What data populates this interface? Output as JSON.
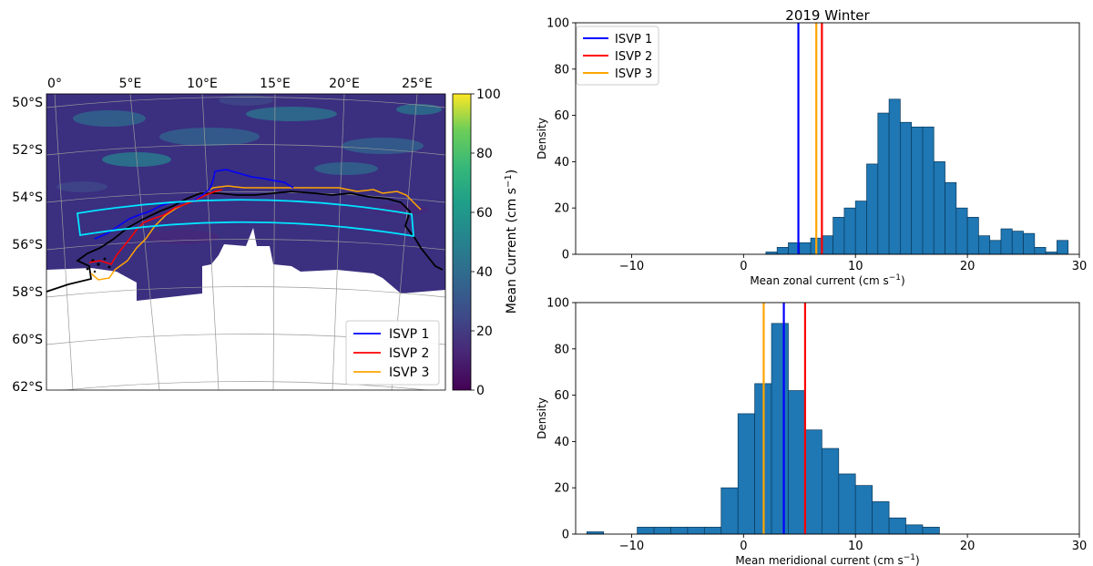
{
  "map": {
    "lon_ticks": [
      "0°",
      "5°E",
      "10°E",
      "15°E",
      "20°E",
      "25°E"
    ],
    "lat_ticks": [
      "50°S",
      "52°S",
      "54°S",
      "56°S",
      "58°S",
      "60°S",
      "62°S"
    ],
    "colorbar": {
      "label": "Mean Current (cm s",
      "label_sup": "−1",
      "label_end": ")",
      "ticks": [
        "0",
        "20",
        "40",
        "60",
        "80",
        "100"
      ],
      "range": [
        0,
        100
      ]
    },
    "legend": [
      "ISVP 1",
      "ISVP 2",
      "ISVP 3"
    ],
    "colors": {
      "isvp1": "#0000ff",
      "isvp2": "#ff0000",
      "isvp3": "#ffa500",
      "box": "#00e5ff",
      "coast": "#000000"
    }
  },
  "chart_data": [
    {
      "type": "bar",
      "title": "2019 Winter",
      "xlabel": "Mean zonal current (cm s",
      "xlabel_sup": "−1",
      "xlabel_end": ")",
      "ylabel": "Density",
      "xlim": [
        -15,
        30
      ],
      "ylim": [
        0,
        100
      ],
      "xticks": [
        -10,
        0,
        10,
        20,
        30
      ],
      "yticks": [
        0,
        20,
        40,
        60,
        80,
        100
      ],
      "bin_width": 1,
      "bins": [
        [
          2,
          1
        ],
        [
          3,
          3
        ],
        [
          4,
          5
        ],
        [
          5,
          5
        ],
        [
          6,
          7
        ],
        [
          7,
          8
        ],
        [
          8,
          16
        ],
        [
          9,
          20
        ],
        [
          10,
          23
        ],
        [
          11,
          39
        ],
        [
          12,
          61
        ],
        [
          13,
          67
        ],
        [
          14,
          57
        ],
        [
          15,
          55
        ],
        [
          16,
          55
        ],
        [
          17,
          40
        ],
        [
          18,
          31
        ],
        [
          19,
          20
        ],
        [
          20,
          16
        ],
        [
          21,
          8
        ],
        [
          22,
          6
        ],
        [
          23,
          11
        ],
        [
          24,
          10
        ],
        [
          25,
          9
        ],
        [
          26,
          3
        ],
        [
          27,
          1
        ],
        [
          28,
          6
        ]
      ],
      "vlines": [
        {
          "name": "ISVP 1",
          "x": 4.9,
          "color": "#0000ff"
        },
        {
          "name": "ISVP 2",
          "x": 7.0,
          "color": "#ff0000"
        },
        {
          "name": "ISVP 3",
          "x": 6.5,
          "color": "#ffa500"
        }
      ],
      "legend_placement": "top-left"
    },
    {
      "type": "bar",
      "title": "",
      "xlabel": "Mean meridional current (cm s",
      "xlabel_sup": "−1",
      "xlabel_end": ")",
      "ylabel": "Density",
      "xlim": [
        -15,
        30
      ],
      "ylim": [
        0,
        100
      ],
      "xticks": [
        -10,
        0,
        10,
        20,
        30
      ],
      "yticks": [
        0,
        20,
        40,
        60,
        80,
        100
      ],
      "bin_width": 1.5,
      "bins": [
        [
          -14,
          1
        ],
        [
          -11,
          0
        ],
        [
          -9.5,
          3
        ],
        [
          -8,
          3
        ],
        [
          -6.5,
          3
        ],
        [
          -5,
          3
        ],
        [
          -3.5,
          3
        ],
        [
          -2,
          20
        ],
        [
          -0.5,
          52
        ],
        [
          1,
          65
        ],
        [
          2.5,
          91
        ],
        [
          4,
          62
        ],
        [
          5.5,
          45
        ],
        [
          7,
          37
        ],
        [
          8.5,
          26
        ],
        [
          10,
          21
        ],
        [
          11.5,
          14
        ],
        [
          13,
          7
        ],
        [
          14.5,
          4
        ],
        [
          16,
          3
        ]
      ],
      "vlines": [
        {
          "name": "ISVP 1",
          "x": 3.6,
          "color": "#0000ff"
        },
        {
          "name": "ISVP 2",
          "x": 5.5,
          "color": "#ff0000"
        },
        {
          "name": "ISVP 3",
          "x": 1.8,
          "color": "#ffa500"
        }
      ]
    }
  ]
}
